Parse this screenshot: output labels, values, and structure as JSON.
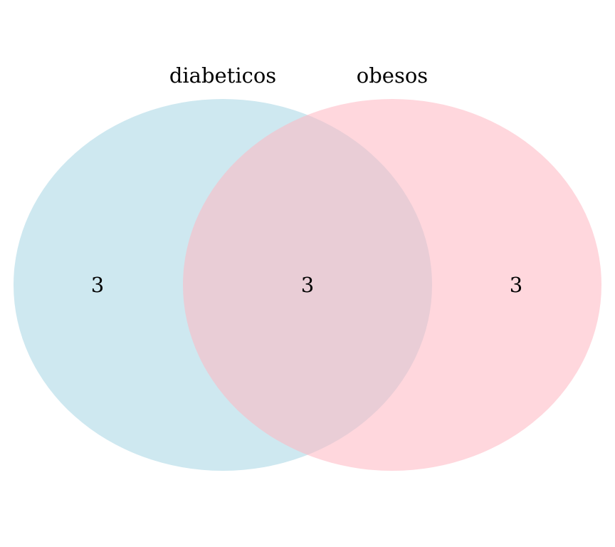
{
  "diagram": {
    "type": "venn",
    "sets": [
      {
        "name": "diabeticos",
        "color": "#add8e6",
        "opacity": 0.6
      },
      {
        "name": "obesos",
        "color": "#ffb6c1",
        "opacity": 0.55
      }
    ],
    "regions": {
      "diabeticos_only": "3",
      "intersection": "3",
      "obesos_only": "3"
    }
  }
}
